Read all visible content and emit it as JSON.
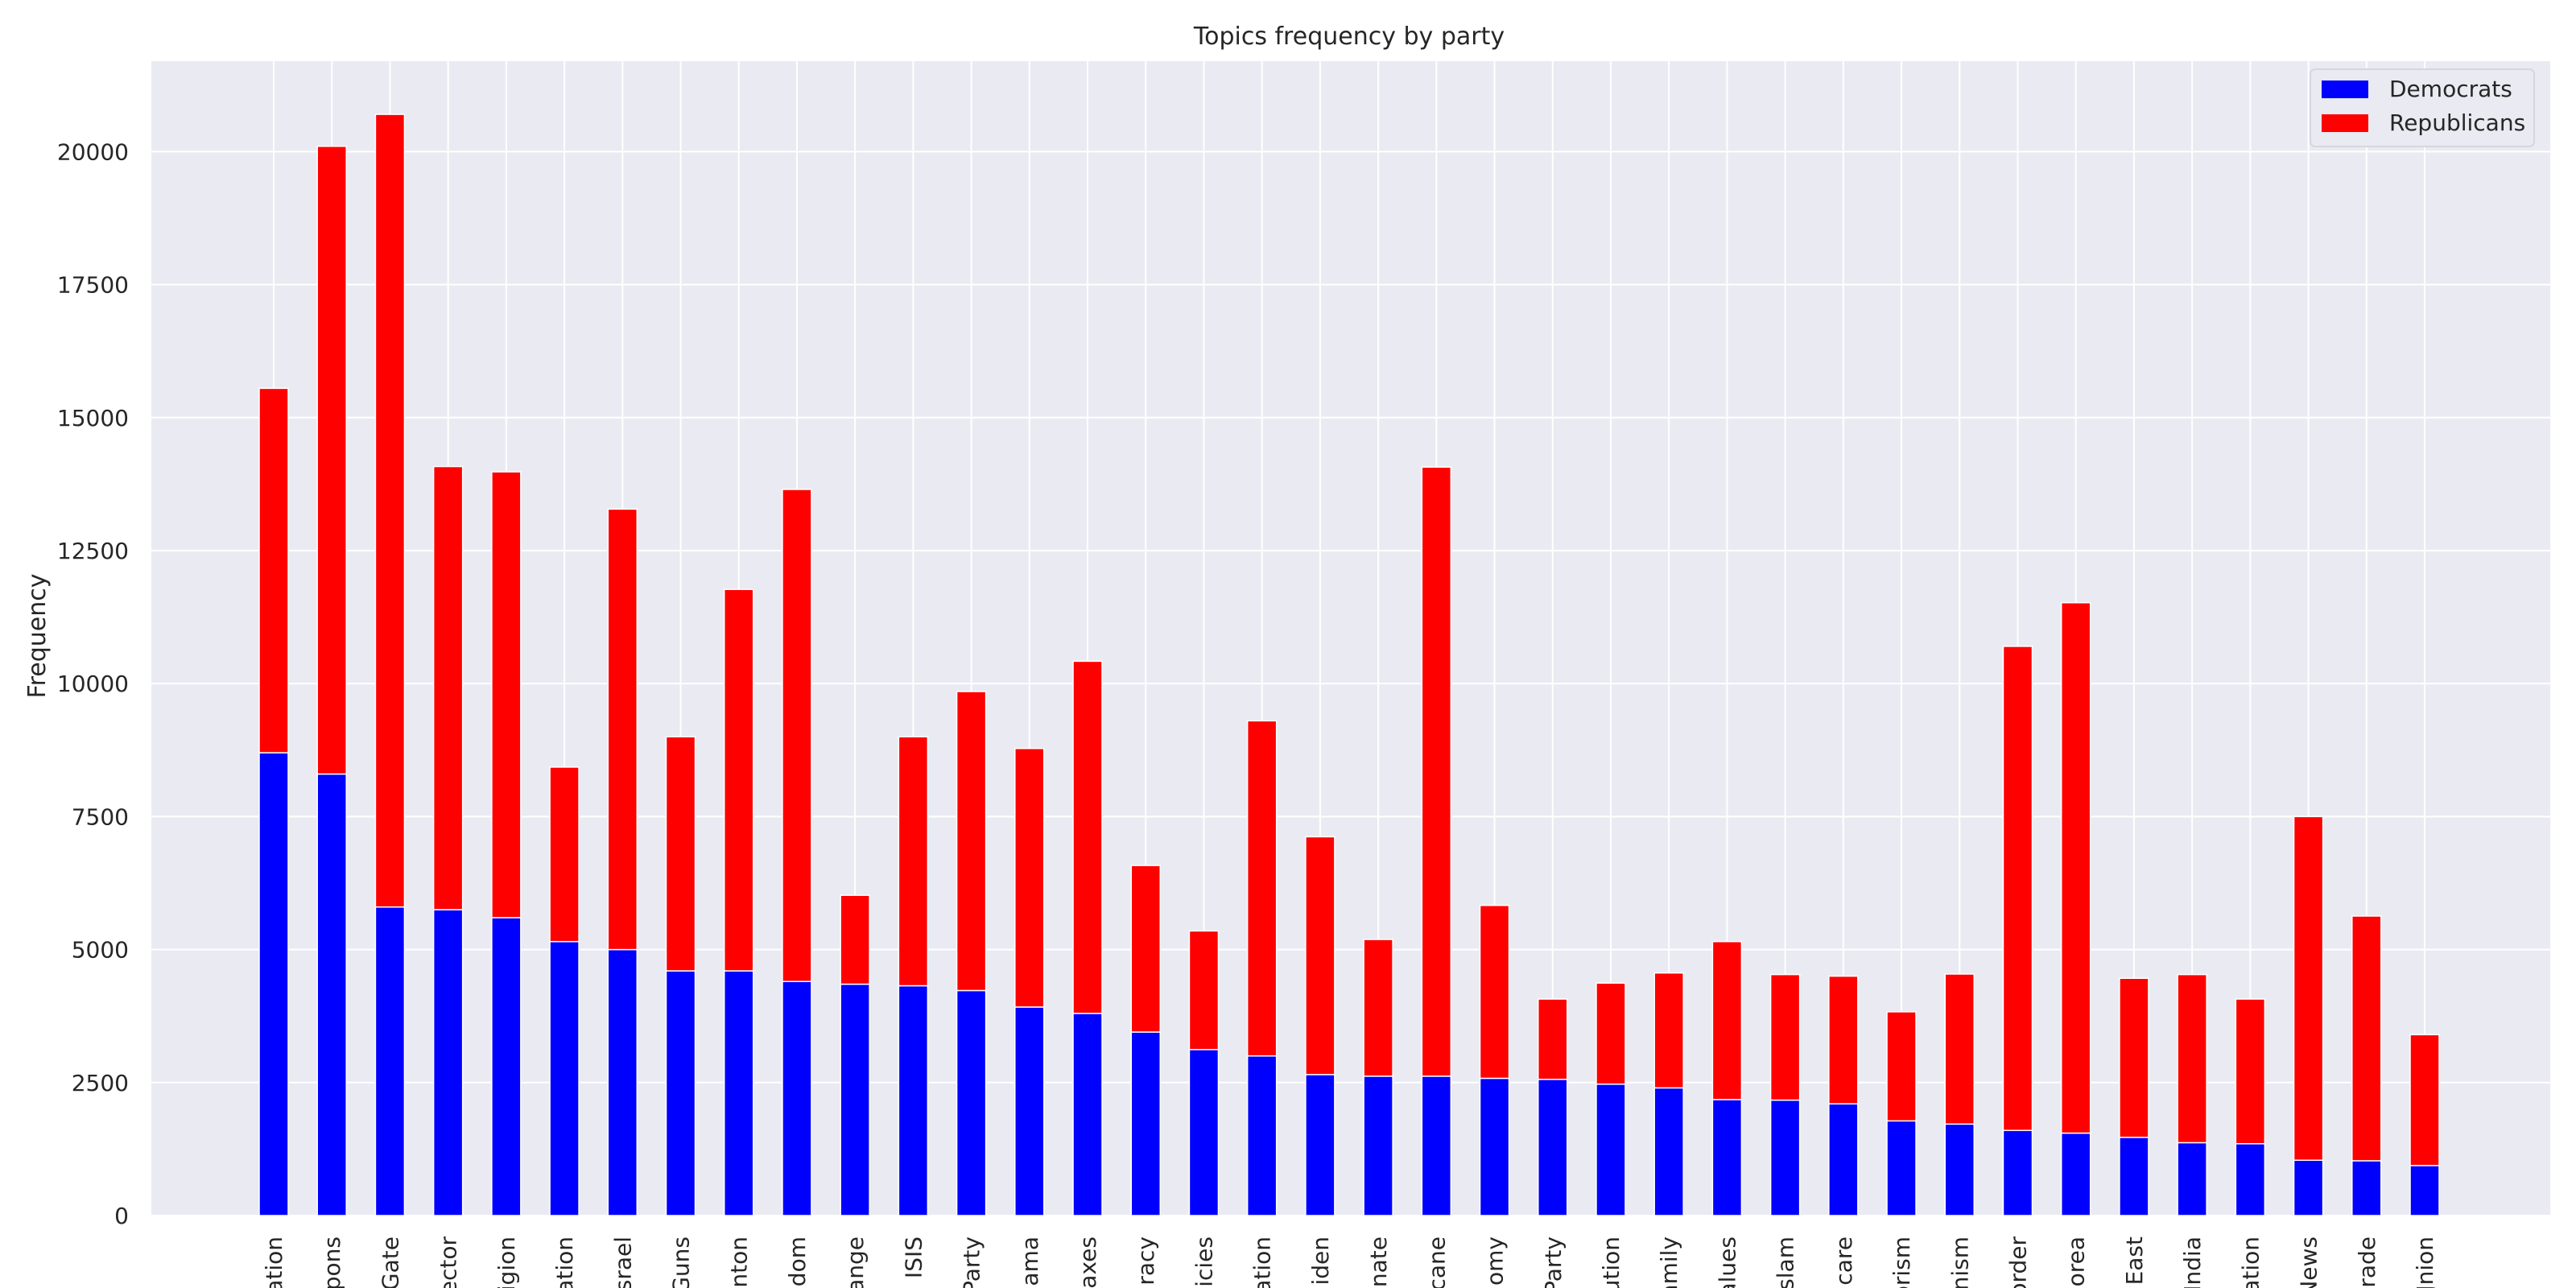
{
  "chart_data": {
    "type": "bar",
    "stacked": true,
    "title": "Topics frequency by party",
    "xlabel": "",
    "ylabel": "Frequency",
    "ylim": [
      0,
      21700
    ],
    "yticks": [
      0,
      2500,
      5000,
      7500,
      10000,
      12500,
      15000,
      17500,
      20000
    ],
    "ytick_labels": [
      "0",
      "2500",
      "5000",
      "7500",
      "10000",
      "12500",
      "15000",
      "17500",
      "20000"
    ],
    "grid": true,
    "legend_position": "top-right",
    "categories": [
      "ation",
      "pons",
      "Gate",
      "ector",
      "igion",
      "ation",
      "srael",
      "Guns",
      "inton",
      "dom",
      "ange",
      "ISIS",
      "Party",
      "ama",
      "axes",
      "racy",
      "icies",
      "ation",
      "iden",
      "enate",
      "cane",
      "omy",
      "Party",
      "ution",
      "amily",
      "alues",
      "slam",
      "care",
      "orism",
      "nism",
      "order",
      "orea",
      "East",
      "India",
      "ation",
      "News",
      "rade",
      "Jnion"
    ],
    "series": [
      {
        "name": "Democrats",
        "color": "#0000ff",
        "values": [
          8700,
          8300,
          5800,
          5750,
          5600,
          5150,
          5000,
          4600,
          4600,
          4400,
          4350,
          4320,
          4230,
          3920,
          3800,
          3450,
          3120,
          3000,
          2650,
          2620,
          2620,
          2580,
          2560,
          2470,
          2400,
          2180,
          2170,
          2100,
          1780,
          1720,
          1600,
          1550,
          1470,
          1370,
          1350,
          1040,
          1030,
          940
        ]
      },
      {
        "name": "Republicans",
        "color": "#ff0000",
        "values": [
          6850,
          11800,
          14900,
          8330,
          8380,
          3280,
          8280,
          4400,
          7170,
          9250,
          1670,
          4680,
          5620,
          4860,
          6620,
          3130,
          2230,
          6300,
          4470,
          2570,
          11450,
          3250,
          1510,
          1900,
          2160,
          2970,
          2360,
          2400,
          2050,
          2820,
          9100,
          9970,
          2990,
          3160,
          2720,
          6460,
          4600,
          2460
        ]
      }
    ]
  }
}
